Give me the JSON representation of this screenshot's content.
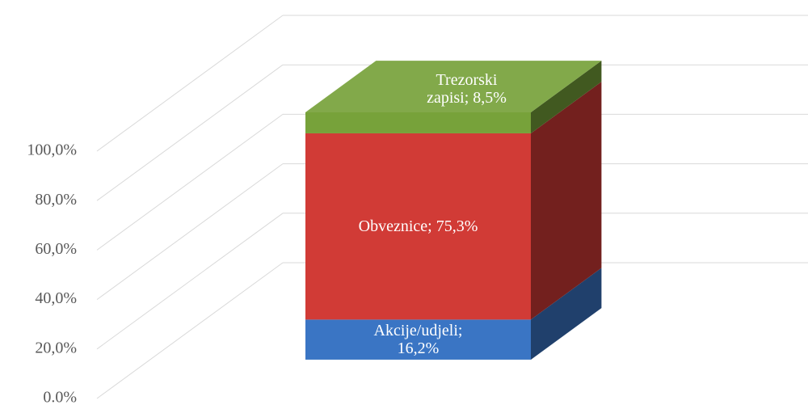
{
  "chart_data": {
    "type": "bar3d_stacked",
    "categories": [
      null
    ],
    "series": [
      {
        "name": "Akcije/udjeli",
        "color": "#3a75c4",
        "values": [
          16.2
        ],
        "value_labels": [
          "Akcije/udjeli; 16,2%"
        ]
      },
      {
        "name": "Obveznice",
        "color": "#d13b36",
        "values": [
          75.3
        ],
        "value_labels": [
          "Obveznice; 75,3%"
        ]
      },
      {
        "name": "Trezorski zapisi",
        "color": "#77a23a",
        "values": [
          8.5
        ],
        "value_labels": [
          "Trezorski zapisi; 8,5%"
        ]
      }
    ],
    "ylim": [
      0,
      100
    ],
    "yticks": [
      {
        "value": 0,
        "label": "0.0%"
      },
      {
        "value": 20,
        "label": "20,0%"
      },
      {
        "value": 40,
        "label": "40,0%"
      },
      {
        "value": 60,
        "label": "60,0%"
      },
      {
        "value": 80,
        "label": "80,0%"
      },
      {
        "value": 100,
        "label": "100,0%"
      }
    ],
    "grid": true
  }
}
